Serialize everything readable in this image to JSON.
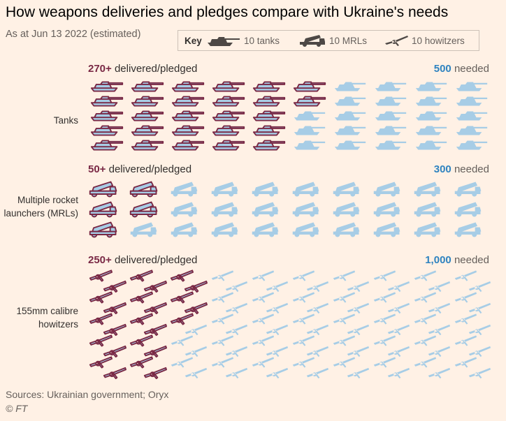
{
  "title": "How weapons deliveries and pledges compare with Ukraine's needs",
  "subtitle": "As at Jun 13 2022 (estimated)",
  "key": {
    "title": "Key",
    "items": [
      {
        "icon": "tank-icon",
        "label": "10 tanks"
      },
      {
        "icon": "mrl-icon",
        "label": "10 MRLs"
      },
      {
        "icon": "howitzer-icon",
        "label": "10 howitzers"
      }
    ]
  },
  "colors": {
    "delivered_fill": "#a7cde6",
    "delivered_outline": "#7a2945",
    "needed_fill": "#a7cde6",
    "delivered_text": "#7a2945",
    "needed_text": "#2f83c0",
    "background": "#fff1e5"
  },
  "chart_data": {
    "type": "pictogram",
    "unit": "10 units per icon",
    "series": [
      {
        "name": "Tanks",
        "label": "Tanks",
        "delivered_value": "270+",
        "delivered_label": "delivered/pledged",
        "needed_value": "500",
        "needed_label": "needed",
        "delivered_icons": 27,
        "needed_icons": 50,
        "icon": "tank-icon"
      },
      {
        "name": "MRLs",
        "label": "Multiple rocket launchers (MRLs)",
        "delivered_value": "50+",
        "delivered_label": "delivered/pledged",
        "needed_value": "300",
        "needed_label": "needed",
        "delivered_icons": 5,
        "needed_icons": 30,
        "icon": "mrl-icon"
      },
      {
        "name": "Howitzers",
        "label": "155mm calibre howitzers",
        "delivered_value": "250+",
        "delivered_label": "delivered/pledged",
        "needed_value": "1,000",
        "needed_label": "needed",
        "delivered_icons": 25,
        "needed_icons": 100,
        "icon": "howitzer-icon"
      }
    ]
  },
  "source": "Sources: Ukrainian government; Oryx",
  "copyright": "© FT"
}
